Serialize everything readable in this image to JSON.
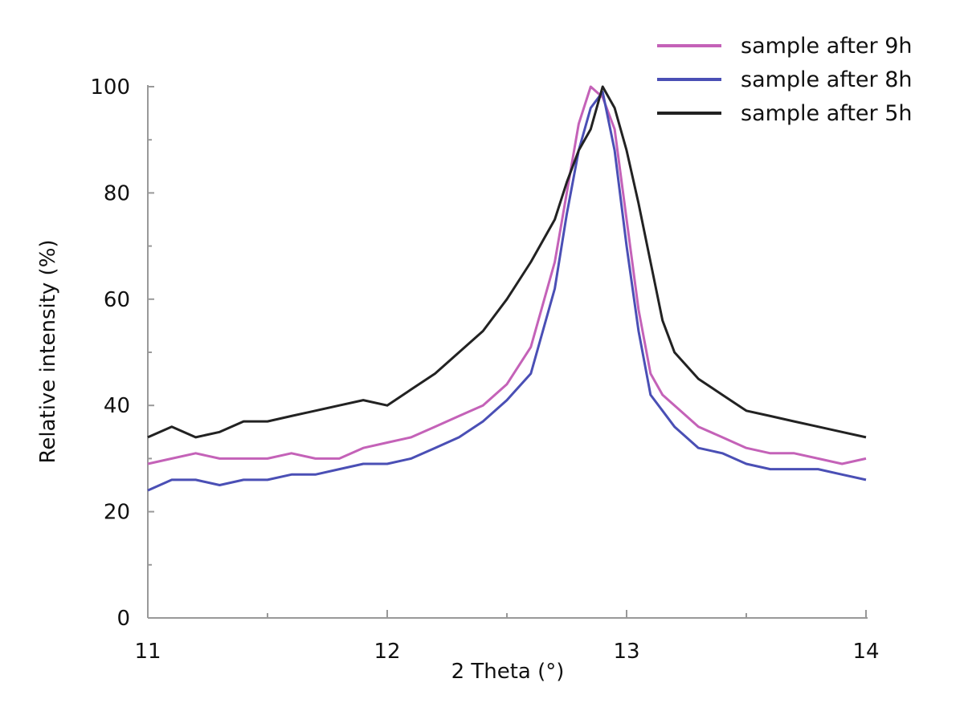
{
  "chart_data": {
    "type": "line",
    "title": "",
    "xlabel": "2 Theta (°)",
    "ylabel": "Relative intensity (%)",
    "xlim": [
      11,
      14
    ],
    "ylim": [
      0,
      100
    ],
    "xticks": [
      11,
      12,
      13,
      14
    ],
    "yticks": [
      0,
      20,
      40,
      60,
      80,
      100
    ],
    "xtick_labels": [
      "11",
      "12",
      "13",
      "14"
    ],
    "ytick_labels": [
      "0",
      "20",
      "40",
      "60",
      "80",
      "100"
    ],
    "grid": false,
    "legend_position": "top-right",
    "series": [
      {
        "name": "sample after 9h",
        "color": "#c462b8",
        "x": [
          11.0,
          11.1,
          11.2,
          11.3,
          11.4,
          11.5,
          11.6,
          11.7,
          11.8,
          11.9,
          12.0,
          12.1,
          12.2,
          12.3,
          12.4,
          12.5,
          12.6,
          12.7,
          12.75,
          12.8,
          12.85,
          12.9,
          12.95,
          13.0,
          13.05,
          13.1,
          13.15,
          13.2,
          13.3,
          13.4,
          13.5,
          13.6,
          13.7,
          13.8,
          13.9,
          14.0
        ],
        "y": [
          29,
          30,
          31,
          30,
          30,
          30,
          31,
          30,
          30,
          32,
          33,
          34,
          36,
          38,
          40,
          44,
          51,
          67,
          80,
          93,
          100,
          98,
          92,
          75,
          58,
          46,
          42,
          40,
          36,
          34,
          32,
          31,
          31,
          30,
          29,
          30
        ]
      },
      {
        "name": "sample after 8h",
        "color": "#4a4fb5",
        "x": [
          11.0,
          11.1,
          11.2,
          11.3,
          11.4,
          11.5,
          11.6,
          11.7,
          11.8,
          11.9,
          12.0,
          12.1,
          12.2,
          12.3,
          12.4,
          12.5,
          12.6,
          12.7,
          12.75,
          12.8,
          12.85,
          12.9,
          12.95,
          13.0,
          13.05,
          13.1,
          13.15,
          13.2,
          13.3,
          13.4,
          13.5,
          13.6,
          13.7,
          13.8,
          13.9,
          14.0
        ],
        "y": [
          24,
          26,
          26,
          25,
          26,
          26,
          27,
          27,
          28,
          29,
          29,
          30,
          32,
          34,
          37,
          41,
          46,
          62,
          76,
          88,
          96,
          99,
          88,
          70,
          54,
          42,
          39,
          36,
          32,
          31,
          29,
          28,
          28,
          28,
          27,
          26
        ]
      },
      {
        "name": "sample after 5h",
        "color": "#222222",
        "x": [
          11.0,
          11.1,
          11.2,
          11.3,
          11.4,
          11.5,
          11.6,
          11.7,
          11.8,
          11.9,
          12.0,
          12.1,
          12.2,
          12.3,
          12.4,
          12.5,
          12.6,
          12.7,
          12.75,
          12.8,
          12.85,
          12.9,
          12.95,
          13.0,
          13.05,
          13.1,
          13.15,
          13.2,
          13.3,
          13.4,
          13.5,
          13.6,
          13.7,
          13.8,
          13.9,
          14.0
        ],
        "y": [
          34,
          36,
          34,
          35,
          37,
          37,
          38,
          39,
          40,
          41,
          40,
          43,
          46,
          50,
          54,
          60,
          67,
          75,
          82,
          88,
          92,
          100,
          96,
          88,
          78,
          67,
          56,
          50,
          45,
          42,
          39,
          38,
          37,
          36,
          35,
          34
        ]
      }
    ]
  }
}
